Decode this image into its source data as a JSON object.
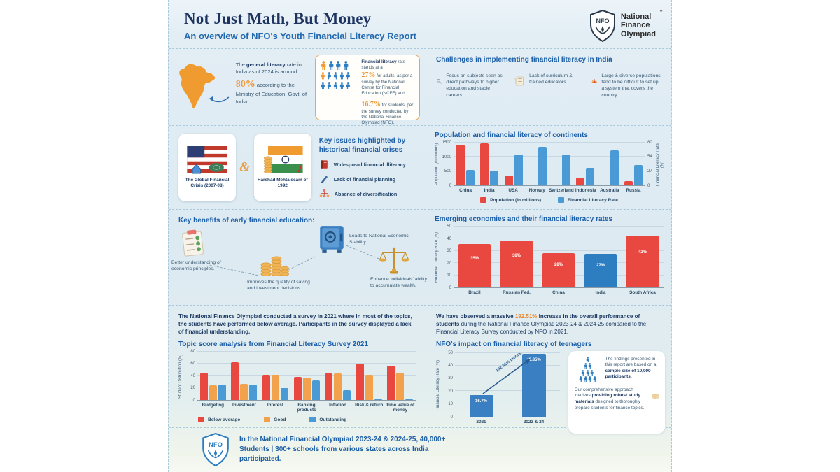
{
  "colors": {
    "accent_orange": "#ef9a3a",
    "highlight_orange": "#ef8a2c",
    "bar_red": "#e8483f",
    "bar_blue": "#4a9bd5",
    "bar_orange": "#f2a24c",
    "india_blue": "#2d7dc1",
    "navy": "#1d3461",
    "heading_blue": "#1c5fa8"
  },
  "header": {
    "title": "Not Just Math, But Money",
    "subtitle": "An overview of NFO's Youth Financial Literacy Report",
    "logo_abbr": "NFO",
    "logo_line1": "National",
    "logo_line2": "Finance",
    "logo_line3": "Olympiad",
    "trademark": "™"
  },
  "literacy": {
    "gen_pre": "The ",
    "gen_bold": "general literacy",
    "gen_mid": " rate in India as of 2024 is around ",
    "gen_pct": "80%",
    "gen_post": " according to the Ministry of Education, Govt. of India",
    "fin_bold": "Financial literacy",
    "fin_mid": " rate stands at a ",
    "adults_pct": "27%",
    "adults_text": " for adults, as per a survey by the National Centre for Financial Education (NCFE) and",
    "students_pct": "16.7%",
    "students_text": " for students, per the survey conducted by the National Finance Olympiad (NFO)."
  },
  "challenges": {
    "title": "Challenges in implementing financial literacy in India",
    "items": [
      {
        "icon": "magnifier-icon",
        "text": "Focus on subjects seen as direct pathways to higher education and stable careers."
      },
      {
        "icon": "documents-icon",
        "text": "Lack of curriculum & trained educators."
      },
      {
        "icon": "population-icon",
        "text": "Large & diverse populations tend to be difficult to set up a system that covers the country."
      }
    ]
  },
  "crises": {
    "card1": "The Global Financial Crisis (2007-08)",
    "amp": "&",
    "card2": "Harshad Mehta scam of 1992",
    "title": "Key issues highlighted by historical financial crises",
    "issues": [
      {
        "icon": "book-icon",
        "text": "Widespread financial illiteracy"
      },
      {
        "icon": "pen-icon",
        "text": "Lack of financial planning"
      },
      {
        "icon": "diversification-icon",
        "text": "Absence of diversification"
      }
    ]
  },
  "benefits": {
    "title": "Key benefits of early financial education:",
    "items": [
      {
        "icon": "checklist-icon",
        "text": "Better understanding of economic principles."
      },
      {
        "icon": "coins-icon",
        "text": "Improves the quality of saving and investment decisions."
      },
      {
        "icon": "vault-icon",
        "text": "Leads to National Economic Stability."
      },
      {
        "icon": "scales-icon",
        "text": "Enhance individuals' ability to accumulate wealth."
      }
    ]
  },
  "survey": {
    "para": "The National Finance Olympiad conducted a survey in 2021 where in most of the topics, the students have performed below average. Participants in the survey displayed a lack of financial understanding."
  },
  "impact": {
    "para_pre": "We have observed a massive ",
    "para_pct": "192.51%",
    "para_bold": " increase in the overall performance of students",
    "para_post": " during the National Finance Olympiad 2023-24 & 2024-25 compared to the Financial Literacy Survey conducted by NFO in 2021.",
    "finding1_pre": "The findings presented in this report are based on a ",
    "finding1_bold": "sample size of 10,000 participants.",
    "finding2_pre": "Our comprehensive approach involves ",
    "finding2_bold": "providing robust study materials",
    "finding2_post": " designed to thoroughly prepare students for finance topics."
  },
  "footer": {
    "line": "In the National Financial Olympiad 2023-24 & 2024-25, 40,000+ Students | 300+ schools from various states across India participated."
  },
  "chart_data": [
    {
      "id": "population",
      "type": "bar",
      "title": "Population and financial literacy of continents",
      "categories": [
        "China",
        "India",
        "USA",
        "Norway",
        "Switzerland",
        "Indonesia",
        "Australia",
        "Russia"
      ],
      "series": [
        {
          "name": "Population (in millions)",
          "axis": "left",
          "color": "#e8483f",
          "values": [
            1412,
            1440,
            340,
            5,
            9,
            275,
            26,
            145
          ]
        },
        {
          "name": "Financial Literacy Rate",
          "axis": "right",
          "color": "#4a9bd5",
          "values": [
            28,
            27,
            57,
            71,
            57,
            32,
            64,
            38
          ]
        }
      ],
      "left_axis": {
        "label": "Population (in millions)",
        "ticks": [
          0,
          500,
          1000,
          1500
        ],
        "max": 1500
      },
      "right_axis": {
        "label": "Financial Literacy Rate (%)",
        "ticks": [
          0,
          27,
          54,
          80
        ],
        "max": 80
      },
      "grid": true,
      "legend_position": "bottom"
    },
    {
      "id": "emerging",
      "type": "bar",
      "title": "Emerging economies and their financial literacy rates",
      "categories": [
        "Brazil",
        "Russian Fed.",
        "China",
        "India",
        "South Africa"
      ],
      "values": [
        35,
        38,
        28,
        27,
        42
      ],
      "bar_labels": [
        "35%",
        "38%",
        "28%",
        "27%",
        "42%"
      ],
      "bar_colors": [
        "#e8483f",
        "#e8483f",
        "#e8483f",
        "#2d7dc1",
        "#e8483f"
      ],
      "ylabel": "Financial Literacy Rate (%)",
      "ticks": [
        0,
        10,
        20,
        30,
        40,
        50
      ],
      "max": 50,
      "grid": true
    },
    {
      "id": "topics",
      "type": "bar",
      "title": "Topic score analysis from Financial Literacy Survey 2021",
      "categories": [
        "Budgeting",
        "Investment",
        "Interest",
        "Banking products",
        "Inflation",
        "Risk & return",
        "Time value of money"
      ],
      "series": [
        {
          "name": "Below average",
          "color": "#e8483f",
          "values": [
            44,
            61,
            41,
            37,
            43,
            59,
            56
          ]
        },
        {
          "name": "Good",
          "color": "#f2a24c",
          "values": [
            24,
            26,
            41,
            36,
            43,
            41,
            44
          ]
        },
        {
          "name": "Outstanding",
          "color": "#4a9bd5",
          "values": [
            25,
            25,
            19,
            31,
            15,
            1,
            1
          ]
        }
      ],
      "ylabel": "Student Distribution (%)",
      "ticks": [
        0,
        20,
        40,
        60,
        80
      ],
      "max": 80,
      "grid": true,
      "legend_position": "bottom-left"
    },
    {
      "id": "impact",
      "type": "bar",
      "title": "NFO's impact on financial literacy of teenagers",
      "categories": [
        "2021",
        "2023 & 24"
      ],
      "values": [
        16.7,
        48.85
      ],
      "bar_labels": [
        "16.7%",
        "48.85%"
      ],
      "bar_colors": [
        "#3a7fc1",
        "#3a7fc1"
      ],
      "arrow_label": "192.51% increase",
      "ylabel": "Financial Literacy Rate (%)",
      "ticks": [
        0,
        10,
        20,
        30,
        40,
        50
      ],
      "max": 50,
      "grid": true
    }
  ]
}
